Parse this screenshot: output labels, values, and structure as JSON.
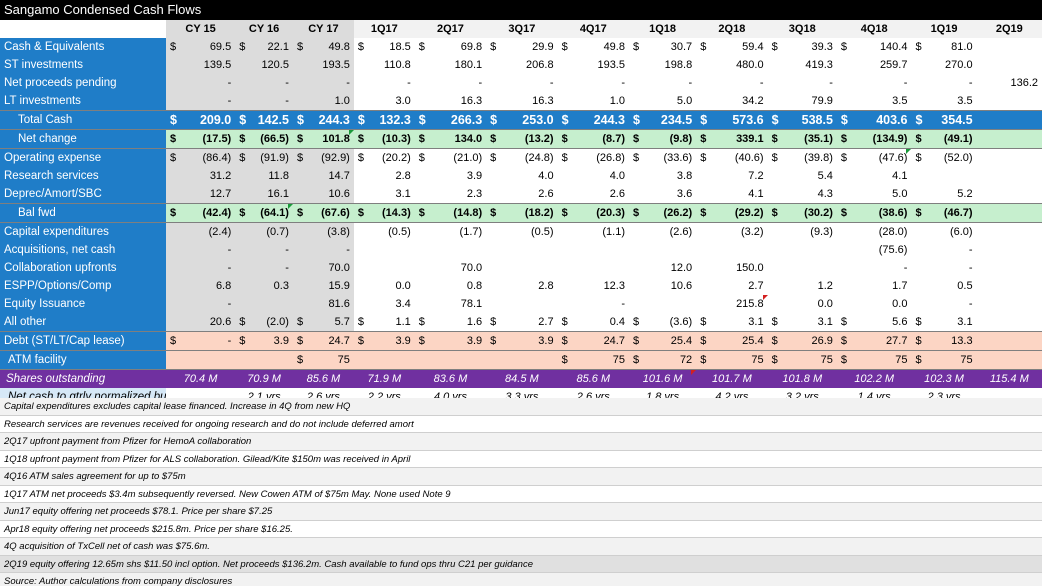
{
  "title": "Sangamo Condensed Cash Flows",
  "headers": [
    "CY 15",
    "CY 16",
    "CY 17",
    "1Q17",
    "2Q17",
    "3Q17",
    "4Q17",
    "1Q18",
    "2Q18",
    "3Q18",
    "4Q18",
    "1Q19",
    "2Q19"
  ],
  "rows": [
    {
      "label": "Cash & Equivalents",
      "cells": [
        [
          "$",
          "69.5"
        ],
        [
          "$",
          "22.1"
        ],
        [
          "$",
          "49.8"
        ],
        [
          "$",
          "18.5"
        ],
        [
          "$",
          "69.8"
        ],
        [
          "$",
          "29.9"
        ],
        [
          "$",
          "49.8"
        ],
        [
          "$",
          "30.7"
        ],
        [
          "$",
          "59.4"
        ],
        [
          "$",
          "39.3"
        ],
        [
          "$",
          "140.4"
        ],
        [
          "$",
          "81.0"
        ],
        [
          "",
          ""
        ]
      ]
    },
    {
      "label": "ST investments",
      "cells": [
        [
          "",
          "139.5"
        ],
        [
          "",
          "120.5"
        ],
        [
          "",
          "193.5"
        ],
        [
          "",
          "110.8"
        ],
        [
          "",
          "180.1"
        ],
        [
          "",
          "206.8"
        ],
        [
          "",
          "193.5"
        ],
        [
          "",
          "198.8"
        ],
        [
          "",
          "480.0"
        ],
        [
          "",
          "419.3"
        ],
        [
          "",
          "259.7"
        ],
        [
          "",
          "270.0"
        ],
        [
          "",
          ""
        ]
      ]
    },
    {
      "label": "Net proceeds pending",
      "cells": [
        [
          "",
          "-"
        ],
        [
          "",
          "-"
        ],
        [
          "",
          "-"
        ],
        [
          "",
          "-"
        ],
        [
          "",
          "-"
        ],
        [
          "",
          "-"
        ],
        [
          "",
          "-"
        ],
        [
          "",
          "-"
        ],
        [
          "",
          "-"
        ],
        [
          "",
          "-"
        ],
        [
          "",
          "-"
        ],
        [
          "",
          "-"
        ],
        [
          "",
          "136.2"
        ]
      ]
    },
    {
      "label": "LT investments",
      "cells": [
        [
          "",
          "-"
        ],
        [
          "",
          "-"
        ],
        [
          "",
          "1.0"
        ],
        [
          "",
          "3.0"
        ],
        [
          "",
          "16.3"
        ],
        [
          "",
          "16.3"
        ],
        [
          "",
          "1.0"
        ],
        [
          "",
          "5.0"
        ],
        [
          "",
          "34.2"
        ],
        [
          "",
          "79.9"
        ],
        [
          "",
          "3.5"
        ],
        [
          "",
          "3.5"
        ],
        [
          "",
          ""
        ]
      ]
    },
    {
      "label": "Total Cash",
      "cells": [
        [
          "$",
          "209.0"
        ],
        [
          "$",
          "142.5"
        ],
        [
          "$",
          "244.3"
        ],
        [
          "$",
          "132.3"
        ],
        [
          "$",
          "266.3"
        ],
        [
          "$",
          "253.0"
        ],
        [
          "$",
          "244.3"
        ],
        [
          "$",
          "234.5"
        ],
        [
          "$",
          "573.6"
        ],
        [
          "$",
          "538.5"
        ],
        [
          "$",
          "403.6"
        ],
        [
          "$",
          "354.5"
        ],
        [
          "",
          ""
        ]
      ]
    },
    {
      "label": "Net change",
      "cells": [
        [
          "$",
          "(17.5)"
        ],
        [
          "$",
          "(66.5)"
        ],
        [
          "$",
          "101.8"
        ],
        [
          "$",
          "(10.3)"
        ],
        [
          "$",
          "134.0"
        ],
        [
          "$",
          "(13.2)"
        ],
        [
          "$",
          "(8.7)"
        ],
        [
          "$",
          "(9.8)"
        ],
        [
          "$",
          "339.1"
        ],
        [
          "$",
          "(35.1)"
        ],
        [
          "$",
          "(134.9)"
        ],
        [
          "$",
          "(49.1)"
        ],
        [
          "",
          ""
        ]
      ]
    },
    {
      "label": "Operating expense",
      "cells": [
        [
          "$",
          "(86.4)"
        ],
        [
          "$",
          "(91.9)"
        ],
        [
          "$",
          "(92.9)"
        ],
        [
          "$",
          "(20.2)"
        ],
        [
          "$",
          "(21.0)"
        ],
        [
          "$",
          "(24.8)"
        ],
        [
          "$",
          "(26.8)"
        ],
        [
          "$",
          "(33.6)"
        ],
        [
          "$",
          "(40.6)"
        ],
        [
          "$",
          "(39.8)"
        ],
        [
          "$",
          "(47.6)"
        ],
        [
          "$",
          "(52.0)"
        ],
        [
          "",
          ""
        ]
      ]
    },
    {
      "label": "Research services",
      "cells": [
        [
          "",
          "31.2"
        ],
        [
          "",
          "11.8"
        ],
        [
          "",
          "14.7"
        ],
        [
          "",
          "2.8"
        ],
        [
          "",
          "3.9"
        ],
        [
          "",
          "4.0"
        ],
        [
          "",
          "4.0"
        ],
        [
          "",
          "3.8"
        ],
        [
          "",
          "7.2"
        ],
        [
          "",
          "5.4"
        ],
        [
          "",
          "4.1"
        ],
        [
          "",
          ""
        ],
        [
          "",
          ""
        ]
      ]
    },
    {
      "label": "Deprec/Amort/SBC",
      "cells": [
        [
          "",
          "12.7"
        ],
        [
          "",
          "16.1"
        ],
        [
          "",
          "10.6"
        ],
        [
          "",
          "3.1"
        ],
        [
          "",
          "2.3"
        ],
        [
          "",
          "2.6"
        ],
        [
          "",
          "2.6"
        ],
        [
          "",
          "3.6"
        ],
        [
          "",
          "4.1"
        ],
        [
          "",
          "4.3"
        ],
        [
          "",
          "5.0"
        ],
        [
          "",
          "5.2"
        ],
        [
          "",
          ""
        ]
      ]
    },
    {
      "label": "Bal fwd",
      "cells": [
        [
          "$",
          "(42.4)"
        ],
        [
          "$",
          "(64.1)"
        ],
        [
          "$",
          "(67.6)"
        ],
        [
          "$",
          "(14.3)"
        ],
        [
          "$",
          "(14.8)"
        ],
        [
          "$",
          "(18.2)"
        ],
        [
          "$",
          "(20.3)"
        ],
        [
          "$",
          "(26.2)"
        ],
        [
          "$",
          "(29.2)"
        ],
        [
          "$",
          "(30.2)"
        ],
        [
          "$",
          "(38.6)"
        ],
        [
          "$",
          "(46.7)"
        ],
        [
          "",
          ""
        ]
      ]
    },
    {
      "label": "Capital expenditures",
      "cells": [
        [
          "",
          "(2.4)"
        ],
        [
          "",
          "(0.7)"
        ],
        [
          "",
          "(3.8)"
        ],
        [
          "",
          "(0.5)"
        ],
        [
          "",
          "(1.7)"
        ],
        [
          "",
          "(0.5)"
        ],
        [
          "",
          "(1.1)"
        ],
        [
          "",
          "(2.6)"
        ],
        [
          "",
          "(3.2)"
        ],
        [
          "",
          "(9.3)"
        ],
        [
          "",
          "(28.0)"
        ],
        [
          "",
          "(6.0)"
        ],
        [
          "",
          ""
        ]
      ]
    },
    {
      "label": "Acquisitions, net cash",
      "cells": [
        [
          "",
          "-"
        ],
        [
          "",
          "-"
        ],
        [
          "",
          "-"
        ],
        [
          "",
          ""
        ],
        [
          "",
          ""
        ],
        [
          "",
          ""
        ],
        [
          "",
          ""
        ],
        [
          "",
          ""
        ],
        [
          "",
          ""
        ],
        [
          "",
          ""
        ],
        [
          "",
          "(75.6)"
        ],
        [
          "",
          "-"
        ],
        [
          "",
          ""
        ]
      ]
    },
    {
      "label": "Collaboration upfronts",
      "cells": [
        [
          "",
          "-"
        ],
        [
          "",
          "-"
        ],
        [
          "",
          "70.0"
        ],
        [
          "",
          ""
        ],
        [
          "",
          "70.0"
        ],
        [
          "",
          ""
        ],
        [
          "",
          ""
        ],
        [
          "",
          "12.0"
        ],
        [
          "",
          "150.0"
        ],
        [
          "",
          ""
        ],
        [
          "",
          "-"
        ],
        [
          "",
          "-"
        ],
        [
          "",
          ""
        ]
      ]
    },
    {
      "label": "ESPP/Options/Comp",
      "cells": [
        [
          "",
          "6.8"
        ],
        [
          "",
          "0.3"
        ],
        [
          "",
          "15.9"
        ],
        [
          "",
          "0.0"
        ],
        [
          "",
          "0.8"
        ],
        [
          "",
          "2.8"
        ],
        [
          "",
          "12.3"
        ],
        [
          "",
          "10.6"
        ],
        [
          "",
          "2.7"
        ],
        [
          "",
          "1.2"
        ],
        [
          "",
          "1.7"
        ],
        [
          "",
          "0.5"
        ],
        [
          "",
          ""
        ]
      ]
    },
    {
      "label": "Equity Issuance",
      "cells": [
        [
          "",
          "-"
        ],
        [
          "",
          ""
        ],
        [
          "",
          "81.6"
        ],
        [
          "",
          "3.4"
        ],
        [
          "",
          "78.1"
        ],
        [
          "",
          ""
        ],
        [
          "",
          "-"
        ],
        [
          "",
          ""
        ],
        [
          "",
          "215.8"
        ],
        [
          "",
          "0.0"
        ],
        [
          "",
          "0.0"
        ],
        [
          "",
          "-"
        ],
        [
          "",
          ""
        ]
      ]
    },
    {
      "label": "All other",
      "cells": [
        [
          "",
          "20.6"
        ],
        [
          "$",
          "(2.0)"
        ],
        [
          "$",
          "5.7"
        ],
        [
          "$",
          "1.1"
        ],
        [
          "$",
          "1.6"
        ],
        [
          "$",
          "2.7"
        ],
        [
          "$",
          "0.4"
        ],
        [
          "$",
          "(3.6)"
        ],
        [
          "$",
          "3.1"
        ],
        [
          "$",
          "3.1"
        ],
        [
          "$",
          "5.6"
        ],
        [
          "$",
          "3.1"
        ],
        [
          "",
          ""
        ]
      ]
    },
    {
      "label": "Debt (ST/LT/Cap lease)",
      "cells": [
        [
          "$",
          "-"
        ],
        [
          "$",
          "3.9"
        ],
        [
          "$",
          "24.7"
        ],
        [
          "$",
          "3.9"
        ],
        [
          "$",
          "3.9"
        ],
        [
          "$",
          "3.9"
        ],
        [
          "$",
          "24.7"
        ],
        [
          "$",
          "25.4"
        ],
        [
          "$",
          "25.4"
        ],
        [
          "$",
          "26.9"
        ],
        [
          "$",
          "27.7"
        ],
        [
          "$",
          "13.3"
        ],
        [
          "",
          ""
        ]
      ]
    },
    {
      "label": "ATM facility",
      "cells": [
        [
          "",
          ""
        ],
        [
          "",
          ""
        ],
        [
          "$",
          "75"
        ],
        [
          "",
          ""
        ],
        [
          "",
          ""
        ],
        [
          "",
          ""
        ],
        [
          "$",
          "75"
        ],
        [
          "$",
          "72"
        ],
        [
          "$",
          "75"
        ],
        [
          "$",
          "75"
        ],
        [
          "$",
          "75"
        ],
        [
          "$",
          "75"
        ],
        [
          "",
          ""
        ]
      ]
    }
  ],
  "shares": {
    "label": "Shares outstanding",
    "values": [
      "70.4 M",
      "70.9 M",
      "85.6 M",
      "71.9 M",
      "83.6 M",
      "84.5 M",
      "85.6 M",
      "101.6 M",
      "101.7 M",
      "101.8 M",
      "102.2 M",
      "102.3 M",
      "115.4 M"
    ]
  },
  "burn": {
    "label": "Net cash to qtrly normalized burn",
    "values": [
      "",
      "2.1 yrs",
      "2.6 yrs",
      "2.2 yrs",
      "4.0 yrs",
      "3.3 yrs",
      "2.6 yrs",
      "1.8 yrs",
      "4.2 yrs",
      "3.2 yrs",
      "1.4 yrs",
      "2.3 yrs",
      ""
    ]
  },
  "notes": [
    "Capital expenditures excludes capital lease financed.  Increase in 4Q from new HQ",
    "Research services are revenues received for ongoing research and do not include deferred amort",
    "2Q17 upfront payment from Pfizer for HemoA collaboration",
    "1Q18 upfront payment from Pfizer for ALS collaboration.  Gilead/Kite $150m was received in April",
    "4Q16 ATM sales agreement for up to $75m",
    "1Q17 ATM net proceeds $3.4m subsequently reversed. New Cowen ATM of $75m May.  None used Note 9",
    "Jun17 equity offering net proceeds $78.1.  Price per share $7.25",
    "Apr18 equity offering net proceeds $215.8m.  Price per share $16.25.",
    "4Q acquisition of TxCell net of cash was $75.6m.",
    "2Q19 equity offering 12.65m shs $11.50 incl option.  Net proceeds $136.2m.  Cash available to fund ops thru C21 per guidance",
    "Source:  Author calculations from company disclosures"
  ],
  "colors": {
    "label_bg": "#1f7dc8",
    "year_bg": "#dcdcdc",
    "green_bg": "#c6efce",
    "debt_bg": "#fcd5c4",
    "shares_bg": "#7030a0"
  }
}
